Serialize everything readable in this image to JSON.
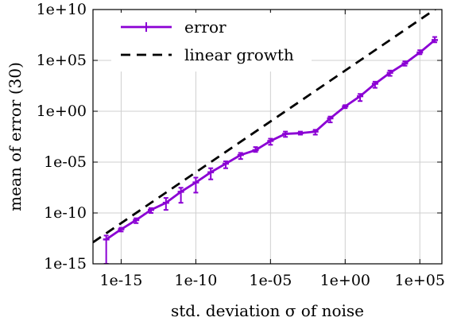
{
  "chart_data": {
    "type": "line",
    "xlabel": "std. deviation σ of noise",
    "ylabel": "mean of error (30)",
    "x_scale": "log10",
    "y_scale": "log10",
    "xlim": [
      1.3e-17,
      3000000.0
    ],
    "ylim": [
      1e-15,
      10000000000.0
    ],
    "x_ticks": [
      {
        "value": 1e-15,
        "label": "1e-15"
      },
      {
        "value": 1e-10,
        "label": "1e-10"
      },
      {
        "value": 1e-05,
        "label": "1e-05"
      },
      {
        "value": 1.0,
        "label": "1e+00"
      },
      {
        "value": 100000.0,
        "label": "1e+05"
      }
    ],
    "y_ticks": [
      {
        "value": 1e-15,
        "label": "1e-15"
      },
      {
        "value": 1e-10,
        "label": "1e-10"
      },
      {
        "value": 1e-05,
        "label": "1e-05"
      },
      {
        "value": 1.0,
        "label": "1e+00"
      },
      {
        "value": 100000.0,
        "label": "1e+05"
      },
      {
        "value": 10000000000.0,
        "label": "1e+10"
      }
    ],
    "grid": true,
    "legend_position": "top-left",
    "series": [
      {
        "name": "error",
        "color": "#8b00d4",
        "style": "solid-with-errorbars",
        "points": [
          {
            "x": 1e-16,
            "y": 2.5e-13,
            "ylo": 1e-15,
            "yhi": 6e-13
          },
          {
            "x": 1e-15,
            "y": 2.5e-12,
            "ylo": 1.5e-12,
            "yhi": 3.5e-12
          },
          {
            "x": 1e-14,
            "y": 2e-11,
            "ylo": 1e-11,
            "yhi": 3e-11
          },
          {
            "x": 1e-13,
            "y": 2e-10,
            "ylo": 1e-10,
            "yhi": 3e-10
          },
          {
            "x": 1e-12,
            "y": 1e-09,
            "ylo": 2e-10,
            "yhi": 3e-09
          },
          {
            "x": 1e-11,
            "y": 1.2e-08,
            "ylo": 1e-09,
            "yhi": 3e-08
          },
          {
            "x": 1e-10,
            "y": 1e-07,
            "ylo": 1e-08,
            "yhi": 3e-07
          },
          {
            "x": 1e-09,
            "y": 1e-06,
            "ylo": 2e-07,
            "yhi": 2.5e-06
          },
          {
            "x": 1e-08,
            "y": 7e-06,
            "ylo": 2.5e-06,
            "yhi": 1.2e-05
          },
          {
            "x": 1e-07,
            "y": 5e-05,
            "ylo": 2e-05,
            "yhi": 8e-05
          },
          {
            "x": 1e-06,
            "y": 0.00015,
            "ylo": 0.0001,
            "yhi": 0.0003
          },
          {
            "x": 1e-05,
            "y": 0.0012,
            "ylo": 0.0005,
            "yhi": 0.002
          },
          {
            "x": 0.0001,
            "y": 0.006,
            "ylo": 0.003,
            "yhi": 0.01
          },
          {
            "x": 0.001,
            "y": 0.007,
            "ylo": 0.005,
            "yhi": 0.01
          },
          {
            "x": 0.01,
            "y": 0.01,
            "ylo": 0.005,
            "yhi": 0.015
          },
          {
            "x": 0.1,
            "y": 0.2,
            "ylo": 0.08,
            "yhi": 0.3
          },
          {
            "x": 1.0,
            "y": 3.0,
            "ylo": 2.0,
            "yhi": 4.0
          },
          {
            "x": 10.0,
            "y": 30.0,
            "ylo": 10.0,
            "yhi": 50.0
          },
          {
            "x": 100.0,
            "y": 500.0,
            "ylo": 200.0,
            "yhi": 800.0
          },
          {
            "x": 1000.0,
            "y": 6000.0,
            "ylo": 3000.0,
            "yhi": 10000.0
          },
          {
            "x": 10000.0,
            "y": 50000.0,
            "ylo": 30000.0,
            "yhi": 80000.0
          },
          {
            "x": 100000.0,
            "y": 600000.0,
            "ylo": 400000.0,
            "yhi": 1000000.0
          },
          {
            "x": 1000000.0,
            "y": 10000000.0,
            "ylo": 6000000.0,
            "yhi": 20000000.0
          }
        ]
      },
      {
        "name": "linear growth",
        "color": "#000000",
        "style": "dashed",
        "points": [
          {
            "x": 1.3e-17,
            "y": 1.3e-13
          },
          {
            "x": 3000000.0,
            "y": 30000000000.0
          }
        ]
      }
    ]
  }
}
